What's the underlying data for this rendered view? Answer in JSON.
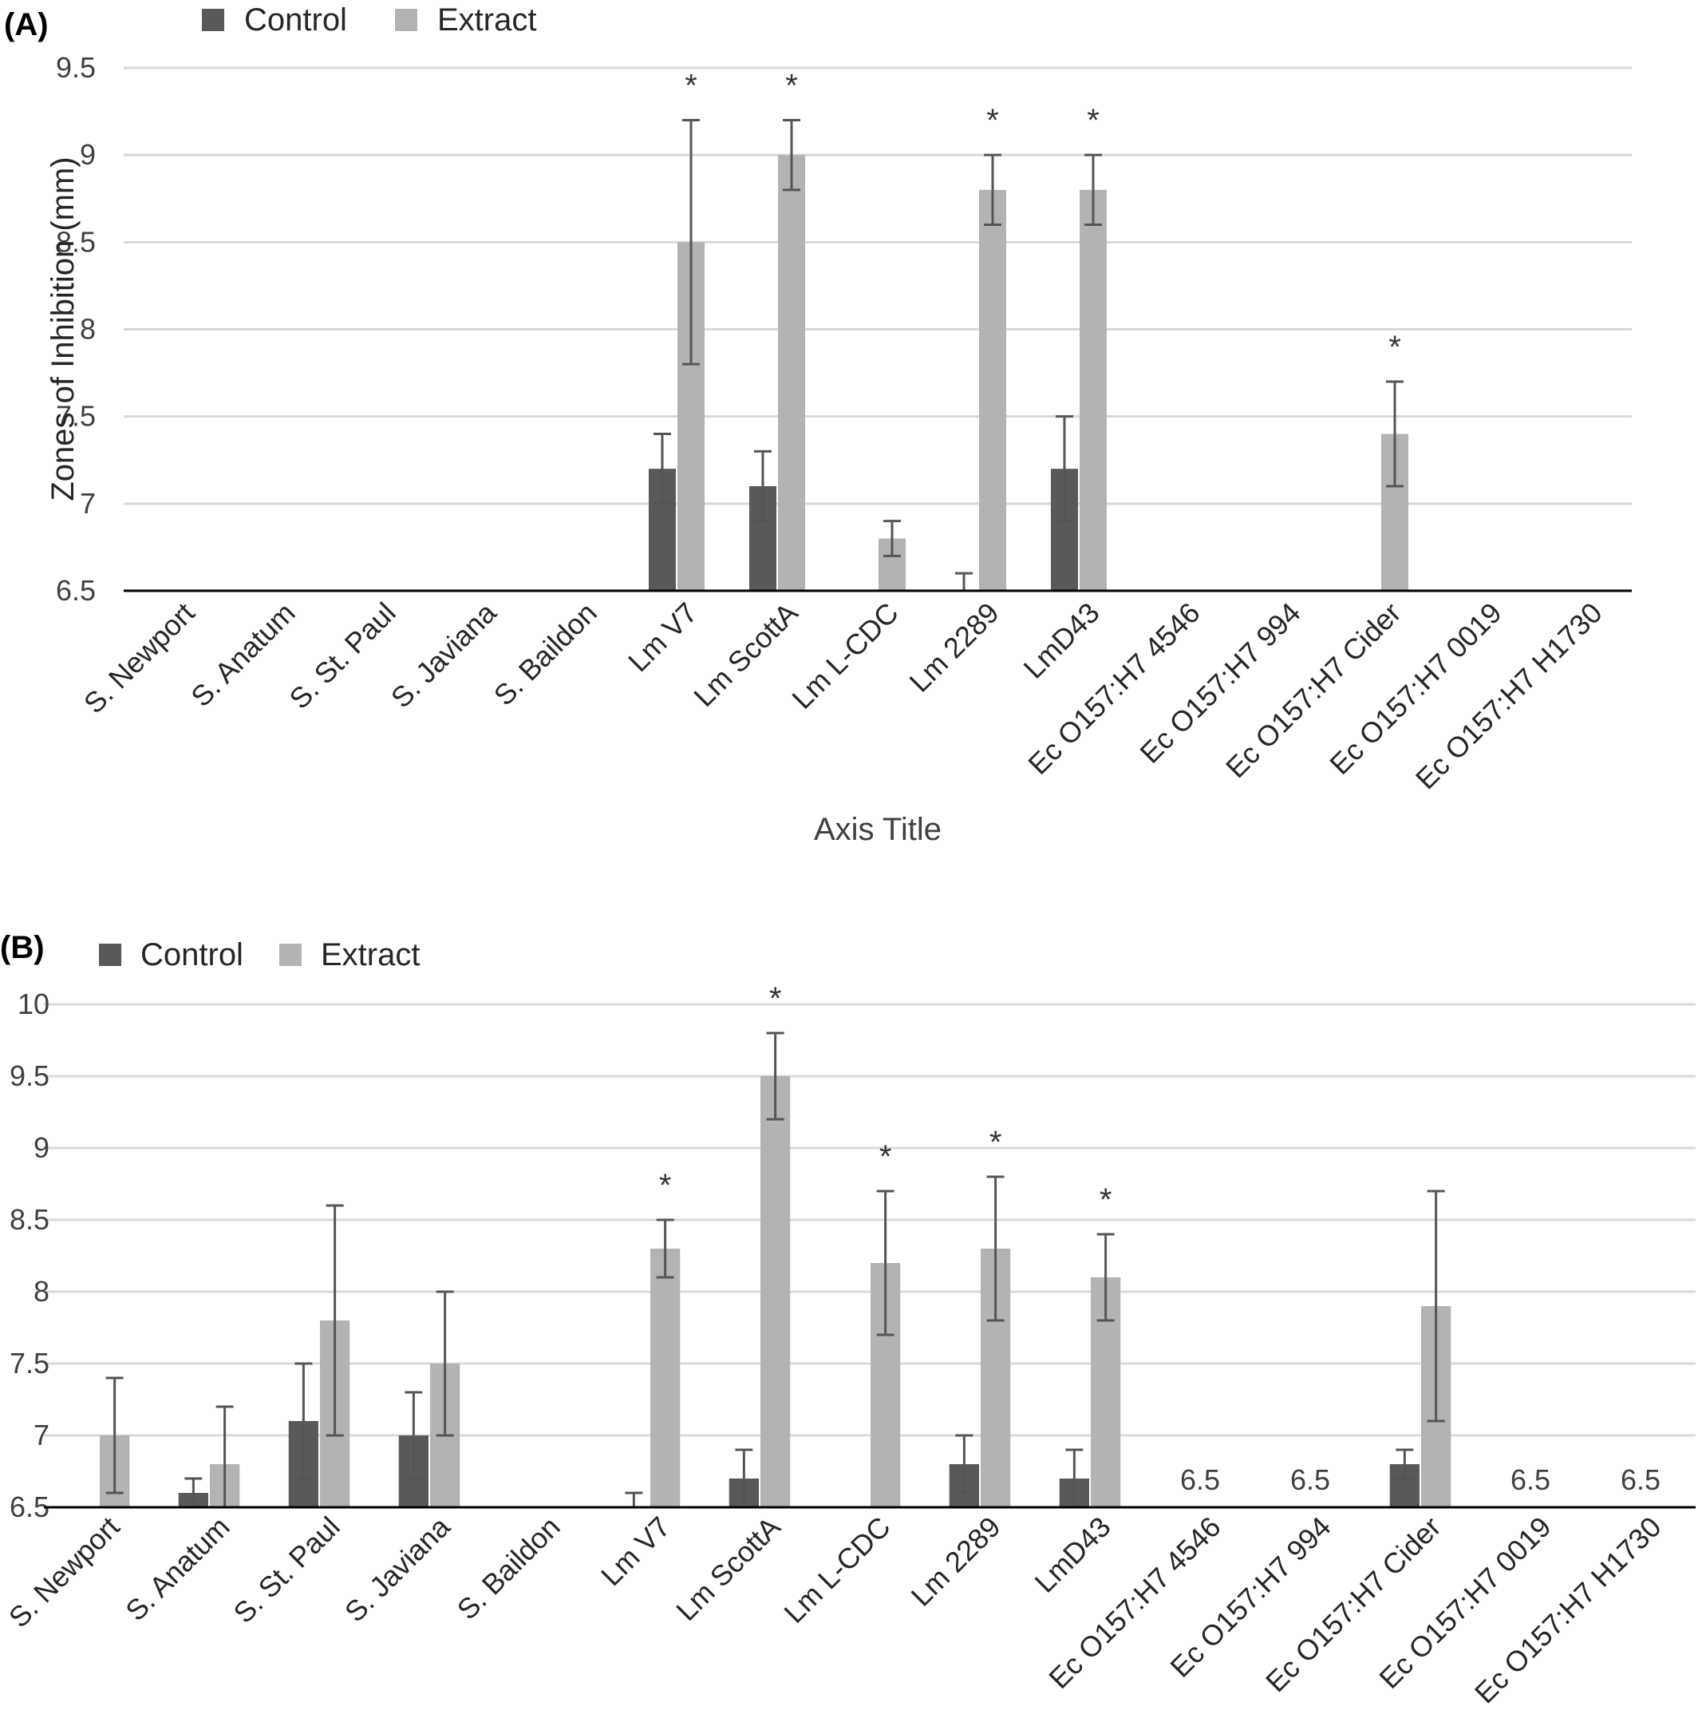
{
  "chart_data": [
    {
      "type": "bar",
      "panel_label": "(A)",
      "title": "",
      "xlabel": "Axis Title",
      "ylabel": "Zones of Inhibition (mm)",
      "ylim": [
        6.5,
        9.5
      ],
      "yticks": [
        "6.5",
        "7",
        "7.5",
        "8",
        "8.5",
        "9",
        "9.5"
      ],
      "grid": true,
      "legend": "top-left",
      "categories": [
        "S. Newport",
        "S. Anatum",
        "S. St. Paul",
        "S. Javiana",
        "S. Baildon",
        "Lm V7",
        "Lm ScottA",
        "Lm L-CDC",
        "Lm  2289",
        "LmD43",
        "Ec O157:H7 4546",
        "Ec O157:H7 994",
        "Ec O157:H7 Cider",
        "Ec O157:H7 0019",
        "Ec O157:H7 H1730"
      ],
      "series": [
        {
          "name": "Control",
          "color": "#595959",
          "values": [
            6.5,
            6.5,
            6.5,
            6.5,
            6.5,
            7.2,
            7.1,
            6.5,
            6.5,
            7.2,
            6.5,
            6.5,
            6.5,
            6.5,
            6.5
          ],
          "error": [
            null,
            null,
            null,
            null,
            null,
            0.2,
            0.2,
            null,
            0.1,
            0.3,
            null,
            null,
            null,
            null,
            null
          ]
        },
        {
          "name": "Extract",
          "color": "#b3b3b3",
          "values": [
            6.5,
            6.5,
            6.5,
            6.5,
            6.5,
            8.5,
            9.0,
            6.8,
            8.8,
            8.8,
            6.5,
            6.5,
            7.4,
            6.5,
            6.5
          ],
          "error": [
            null,
            null,
            null,
            null,
            null,
            0.7,
            0.2,
            0.1,
            0.2,
            0.2,
            null,
            null,
            0.3,
            null,
            null
          ]
        }
      ],
      "significance_marker": "*",
      "significant_categories": [
        5,
        6,
        8,
        9,
        12
      ],
      "value_labels": []
    },
    {
      "type": "bar",
      "panel_label": "(B)",
      "title": "",
      "xlabel": "",
      "ylabel": "",
      "ylim": [
        6.5,
        10
      ],
      "yticks": [
        "6.5",
        "7",
        "7.5",
        "8",
        "8.5",
        "9",
        "9.5",
        "10"
      ],
      "grid": true,
      "legend": "top-left",
      "categories": [
        "S. Newport",
        "S. Anatum",
        "S. St. Paul",
        "S. Javiana",
        "S. Baildon",
        "Lm V7",
        "Lm ScottA",
        "Lm L-CDC",
        "Lm  2289",
        "LmD43",
        "Ec O157:H7 4546",
        "Ec O157:H7 994",
        "Ec O157:H7 Cider",
        "Ec O157:H7 0019",
        "Ec O157:H7 H1730"
      ],
      "series": [
        {
          "name": "Control",
          "color": "#595959",
          "values": [
            6.5,
            6.6,
            7.1,
            7.0,
            6.5,
            6.5,
            6.7,
            6.5,
            6.8,
            6.7,
            6.5,
            6.5,
            6.8,
            6.5,
            6.5
          ],
          "error": [
            null,
            0.1,
            0.4,
            0.3,
            null,
            0.1,
            0.2,
            null,
            0.2,
            0.2,
            null,
            null,
            0.1,
            null,
            null
          ]
        },
        {
          "name": "Extract",
          "color": "#b3b3b3",
          "values": [
            7.0,
            6.8,
            7.8,
            7.5,
            6.5,
            8.3,
            9.5,
            8.2,
            8.3,
            8.1,
            6.5,
            6.5,
            7.9,
            6.5,
            6.5
          ],
          "error": [
            0.4,
            0.4,
            0.8,
            0.5,
            null,
            0.2,
            0.3,
            0.5,
            0.5,
            0.3,
            null,
            null,
            0.8,
            null,
            null
          ]
        }
      ],
      "significance_marker": "*",
      "significant_categories": [
        5,
        6,
        7,
        8,
        9
      ],
      "value_labels": [
        {
          "category": 10,
          "text": "6.5"
        },
        {
          "category": 11,
          "text": "6.5"
        },
        {
          "category": 13,
          "text": "6.5"
        },
        {
          "category": 14,
          "text": "6.5"
        }
      ]
    }
  ]
}
